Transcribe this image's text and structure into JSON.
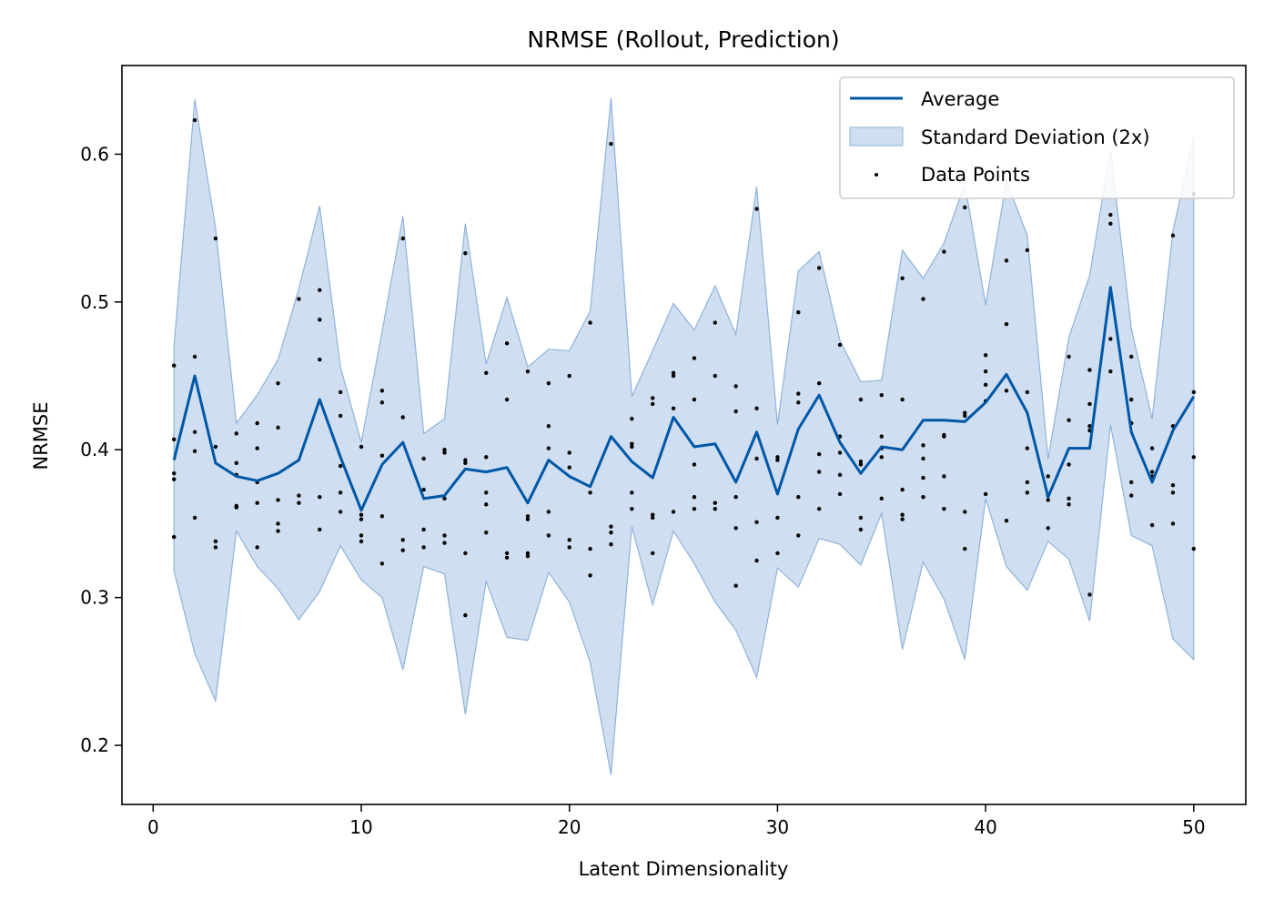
{
  "chart_data": {
    "type": "line",
    "title": "NRMSE (Rollout, Prediction)",
    "xlabel": "Latent Dimensionality",
    "ylabel": "NRMSE",
    "xlim": [
      -1.5,
      52.5
    ],
    "ylim": [
      0.16,
      0.66
    ],
    "xticks": [
      0,
      10,
      20,
      30,
      40,
      50
    ],
    "yticks": [
      0.2,
      0.3,
      0.4,
      0.5,
      0.6
    ],
    "grid": false,
    "legend_position": "top-right",
    "colors": {
      "line": "#0057a6",
      "band": "#a7c3e3",
      "band_edge": "#8fb3da",
      "points": "#000000"
    },
    "legend": [
      "Average",
      "Standard Deviation (2x)",
      "Data Points"
    ],
    "x": [
      1,
      2,
      3,
      4,
      5,
      6,
      7,
      8,
      9,
      10,
      11,
      12,
      13,
      14,
      15,
      16,
      17,
      18,
      19,
      20,
      21,
      22,
      23,
      24,
      25,
      26,
      27,
      28,
      29,
      30,
      31,
      32,
      33,
      34,
      35,
      36,
      37,
      38,
      39,
      40,
      41,
      42,
      43,
      44,
      45,
      46,
      47,
      48,
      49,
      50
    ],
    "series": [
      {
        "name": "Average",
        "values": [
          0.393,
          0.45,
          0.391,
          0.382,
          0.379,
          0.384,
          0.393,
          0.434,
          0.395,
          0.359,
          0.39,
          0.405,
          0.367,
          0.369,
          0.387,
          0.385,
          0.388,
          0.364,
          0.393,
          0.382,
          0.375,
          0.409,
          0.392,
          0.381,
          0.422,
          0.402,
          0.404,
          0.378,
          0.412,
          0.37,
          0.414,
          0.437,
          0.405,
          0.384,
          0.402,
          0.4,
          0.42,
          0.42,
          0.419,
          0.432,
          0.451,
          0.425,
          0.368,
          0.401,
          0.401,
          0.51,
          0.412,
          0.378,
          0.413,
          0.436
        ]
      },
      {
        "name": "Standard Deviation (2x)",
        "upper": [
          0.47,
          0.637,
          0.55,
          0.418,
          0.437,
          0.461,
          0.509,
          0.565,
          0.456,
          0.405,
          0.48,
          0.558,
          0.411,
          0.421,
          0.553,
          0.458,
          0.503,
          0.456,
          0.468,
          0.467,
          0.494,
          0.638,
          0.436,
          0.467,
          0.499,
          0.481,
          0.511,
          0.478,
          0.578,
          0.417,
          0.521,
          0.534,
          0.474,
          0.446,
          0.447,
          0.535,
          0.516,
          0.54,
          0.58,
          0.498,
          0.582,
          0.545,
          0.394,
          0.476,
          0.518,
          0.603,
          0.482,
          0.421,
          0.548,
          0.612
        ],
        "lower": [
          0.318,
          0.262,
          0.23,
          0.345,
          0.321,
          0.306,
          0.285,
          0.304,
          0.335,
          0.312,
          0.3,
          0.251,
          0.321,
          0.316,
          0.221,
          0.311,
          0.273,
          0.271,
          0.317,
          0.297,
          0.256,
          0.18,
          0.348,
          0.295,
          0.345,
          0.323,
          0.297,
          0.278,
          0.246,
          0.32,
          0.307,
          0.34,
          0.336,
          0.322,
          0.357,
          0.265,
          0.324,
          0.299,
          0.258,
          0.367,
          0.321,
          0.305,
          0.338,
          0.326,
          0.284,
          0.417,
          0.342,
          0.335,
          0.272,
          0.258
        ]
      },
      {
        "name": "Data Points",
        "points": [
          [
            1,
            0.457
          ],
          [
            1,
            0.407
          ],
          [
            1,
            0.384
          ],
          [
            1,
            0.38
          ],
          [
            1,
            0.341
          ],
          [
            2,
            0.623
          ],
          [
            2,
            0.463
          ],
          [
            2,
            0.412
          ],
          [
            2,
            0.399
          ],
          [
            2,
            0.354
          ],
          [
            3,
            0.543
          ],
          [
            3,
            0.402
          ],
          [
            3,
            0.338
          ],
          [
            3,
            0.334
          ],
          [
            4,
            0.411
          ],
          [
            4,
            0.391
          ],
          [
            4,
            0.383
          ],
          [
            4,
            0.362
          ],
          [
            4,
            0.361
          ],
          [
            5,
            0.418
          ],
          [
            5,
            0.401
          ],
          [
            5,
            0.378
          ],
          [
            5,
            0.364
          ],
          [
            5,
            0.334
          ],
          [
            6,
            0.445
          ],
          [
            6,
            0.415
          ],
          [
            6,
            0.366
          ],
          [
            6,
            0.35
          ],
          [
            6,
            0.345
          ],
          [
            7,
            0.502
          ],
          [
            7,
            0.369
          ],
          [
            7,
            0.364
          ],
          [
            8,
            0.508
          ],
          [
            8,
            0.488
          ],
          [
            8,
            0.461
          ],
          [
            8,
            0.368
          ],
          [
            8,
            0.346
          ],
          [
            9,
            0.439
          ],
          [
            9,
            0.423
          ],
          [
            9,
            0.389
          ],
          [
            9,
            0.371
          ],
          [
            9,
            0.358
          ],
          [
            10,
            0.402
          ],
          [
            10,
            0.356
          ],
          [
            10,
            0.353
          ],
          [
            10,
            0.342
          ],
          [
            10,
            0.338
          ],
          [
            11,
            0.44
          ],
          [
            11,
            0.432
          ],
          [
            11,
            0.396
          ],
          [
            11,
            0.355
          ],
          [
            11,
            0.323
          ],
          [
            12,
            0.543
          ],
          [
            12,
            0.422
          ],
          [
            12,
            0.339
          ],
          [
            12,
            0.332
          ],
          [
            13,
            0.394
          ],
          [
            13,
            0.373
          ],
          [
            13,
            0.346
          ],
          [
            13,
            0.334
          ],
          [
            14,
            0.4
          ],
          [
            14,
            0.398
          ],
          [
            14,
            0.367
          ],
          [
            14,
            0.342
          ],
          [
            14,
            0.337
          ],
          [
            15,
            0.533
          ],
          [
            15,
            0.393
          ],
          [
            15,
            0.391
          ],
          [
            15,
            0.33
          ],
          [
            15,
            0.288
          ],
          [
            16,
            0.452
          ],
          [
            16,
            0.395
          ],
          [
            16,
            0.371
          ],
          [
            16,
            0.363
          ],
          [
            16,
            0.344
          ],
          [
            17,
            0.472
          ],
          [
            17,
            0.434
          ],
          [
            17,
            0.33
          ],
          [
            17,
            0.327
          ],
          [
            18,
            0.453
          ],
          [
            18,
            0.355
          ],
          [
            18,
            0.353
          ],
          [
            18,
            0.33
          ],
          [
            18,
            0.328
          ],
          [
            19,
            0.445
          ],
          [
            19,
            0.416
          ],
          [
            19,
            0.401
          ],
          [
            19,
            0.358
          ],
          [
            19,
            0.342
          ],
          [
            20,
            0.45
          ],
          [
            20,
            0.398
          ],
          [
            20,
            0.388
          ],
          [
            20,
            0.339
          ],
          [
            20,
            0.334
          ],
          [
            21,
            0.486
          ],
          [
            21,
            0.371
          ],
          [
            21,
            0.333
          ],
          [
            21,
            0.315
          ],
          [
            22,
            0.607
          ],
          [
            22,
            0.348
          ],
          [
            22,
            0.344
          ],
          [
            22,
            0.336
          ],
          [
            23,
            0.421
          ],
          [
            23,
            0.404
          ],
          [
            23,
            0.402
          ],
          [
            23,
            0.371
          ],
          [
            23,
            0.36
          ],
          [
            24,
            0.435
          ],
          [
            24,
            0.431
          ],
          [
            24,
            0.356
          ],
          [
            24,
            0.354
          ],
          [
            24,
            0.33
          ],
          [
            25,
            0.452
          ],
          [
            25,
            0.45
          ],
          [
            25,
            0.428
          ],
          [
            25,
            0.358
          ],
          [
            26,
            0.462
          ],
          [
            26,
            0.434
          ],
          [
            26,
            0.39
          ],
          [
            26,
            0.368
          ],
          [
            26,
            0.36
          ],
          [
            27,
            0.486
          ],
          [
            27,
            0.45
          ],
          [
            27,
            0.364
          ],
          [
            27,
            0.36
          ],
          [
            28,
            0.443
          ],
          [
            28,
            0.426
          ],
          [
            28,
            0.368
          ],
          [
            28,
            0.347
          ],
          [
            28,
            0.308
          ],
          [
            29,
            0.563
          ],
          [
            29,
            0.428
          ],
          [
            29,
            0.394
          ],
          [
            29,
            0.351
          ],
          [
            29,
            0.325
          ],
          [
            30,
            0.395
          ],
          [
            30,
            0.393
          ],
          [
            30,
            0.354
          ],
          [
            30,
            0.33
          ],
          [
            31,
            0.493
          ],
          [
            31,
            0.438
          ],
          [
            31,
            0.432
          ],
          [
            31,
            0.368
          ],
          [
            31,
            0.342
          ],
          [
            32,
            0.523
          ],
          [
            32,
            0.445
          ],
          [
            32,
            0.397
          ],
          [
            32,
            0.385
          ],
          [
            32,
            0.36
          ],
          [
            33,
            0.471
          ],
          [
            33,
            0.409
          ],
          [
            33,
            0.398
          ],
          [
            33,
            0.383
          ],
          [
            33,
            0.37
          ],
          [
            34,
            0.434
          ],
          [
            34,
            0.392
          ],
          [
            34,
            0.39
          ],
          [
            34,
            0.354
          ],
          [
            34,
            0.346
          ],
          [
            35,
            0.437
          ],
          [
            35,
            0.409
          ],
          [
            35,
            0.401
          ],
          [
            35,
            0.395
          ],
          [
            35,
            0.367
          ],
          [
            36,
            0.516
          ],
          [
            36,
            0.434
          ],
          [
            36,
            0.373
          ],
          [
            36,
            0.356
          ],
          [
            36,
            0.353
          ],
          [
            37,
            0.502
          ],
          [
            37,
            0.403
          ],
          [
            37,
            0.394
          ],
          [
            37,
            0.381
          ],
          [
            37,
            0.368
          ],
          [
            38,
            0.534
          ],
          [
            38,
            0.41
          ],
          [
            38,
            0.409
          ],
          [
            38,
            0.382
          ],
          [
            38,
            0.36
          ],
          [
            39,
            0.564
          ],
          [
            39,
            0.425
          ],
          [
            39,
            0.423
          ],
          [
            39,
            0.358
          ],
          [
            39,
            0.333
          ],
          [
            40,
            0.464
          ],
          [
            40,
            0.453
          ],
          [
            40,
            0.444
          ],
          [
            40,
            0.433
          ],
          [
            40,
            0.37
          ],
          [
            41,
            0.528
          ],
          [
            41,
            0.485
          ],
          [
            41,
            0.44
          ],
          [
            41,
            0.352
          ],
          [
            42,
            0.535
          ],
          [
            42,
            0.439
          ],
          [
            42,
            0.401
          ],
          [
            42,
            0.378
          ],
          [
            42,
            0.371
          ],
          [
            43,
            0.382
          ],
          [
            43,
            0.369
          ],
          [
            43,
            0.366
          ],
          [
            43,
            0.347
          ],
          [
            44,
            0.463
          ],
          [
            44,
            0.42
          ],
          [
            44,
            0.39
          ],
          [
            44,
            0.367
          ],
          [
            44,
            0.363
          ],
          [
            45,
            0.454
          ],
          [
            45,
            0.431
          ],
          [
            45,
            0.416
          ],
          [
            45,
            0.413
          ],
          [
            45,
            0.302
          ],
          [
            46,
            0.559
          ],
          [
            46,
            0.553
          ],
          [
            46,
            0.475
          ],
          [
            46,
            0.453
          ],
          [
            47,
            0.463
          ],
          [
            47,
            0.434
          ],
          [
            47,
            0.418
          ],
          [
            47,
            0.378
          ],
          [
            47,
            0.369
          ],
          [
            48,
            0.401
          ],
          [
            48,
            0.385
          ],
          [
            48,
            0.382
          ],
          [
            48,
            0.349
          ],
          [
            49,
            0.545
          ],
          [
            49,
            0.416
          ],
          [
            49,
            0.376
          ],
          [
            49,
            0.371
          ],
          [
            49,
            0.35
          ],
          [
            50,
            0.573
          ],
          [
            50,
            0.439
          ],
          [
            50,
            0.395
          ],
          [
            50,
            0.333
          ]
        ]
      }
    ]
  }
}
